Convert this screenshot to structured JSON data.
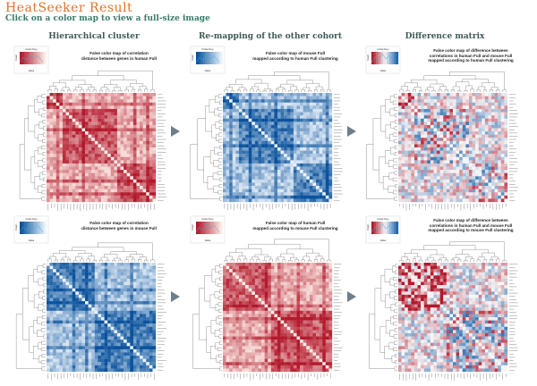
{
  "header": {
    "title": "HeatSeeker Result",
    "subtitle": "Click on a color map to view a full-size image"
  },
  "columns": [
    {
      "title": "Hierarchical cluster"
    },
    {
      "title": "Re-mapping of the other cohort"
    },
    {
      "title": "Difference matrix"
    }
  ],
  "panels": [
    {
      "title_line1": "False color map of correlation",
      "title_line2": "distance between genes in human Full",
      "palette": "red",
      "structure": "human",
      "colors": {
        "high": "#b2182b",
        "low": "#fef0ea"
      }
    },
    {
      "title_line1": "False color map of mouse Full",
      "title_line2": "mapped according to human Full clustering",
      "palette": "blue",
      "structure": "human",
      "colors": {
        "high": "#08519c",
        "low": "#eef5fc"
      }
    },
    {
      "title_line1": "False color map of difference between",
      "title_line2": "correlations in human Full and mouse Full",
      "title_line3": "mapped according to human Full clustering",
      "palette": "diverging",
      "structure": "human",
      "colors": {
        "high": "#b2182b",
        "mid": "#f7f7f7",
        "low": "#2166ac"
      }
    },
    {
      "title_line1": "False color map of correlation",
      "title_line2": "distance between genes in mouse Full",
      "palette": "blue",
      "structure": "mouse",
      "colors": {
        "high": "#08519c",
        "low": "#eef5fc"
      }
    },
    {
      "title_line1": "False color map of human Full",
      "title_line2": "mapped according to mouse Full clustering",
      "palette": "red",
      "structure": "mouse",
      "colors": {
        "high": "#b2182b",
        "low": "#fef0ea"
      }
    },
    {
      "title_line1": "False color map of difference between",
      "title_line2": "correlations in human Full and mouse Full",
      "title_line3": "mapped according to mouse Full clustering",
      "palette": "diverging",
      "structure": "mouse",
      "colors": {
        "high": "#b2182b",
        "mid": "#f7f7f7",
        "low": "#2166ac"
      }
    }
  ],
  "color_key": {
    "title": "Color Key",
    "xlabel": "Value",
    "ylabel": "Count"
  },
  "arrow_color": "#6e7f8a"
}
